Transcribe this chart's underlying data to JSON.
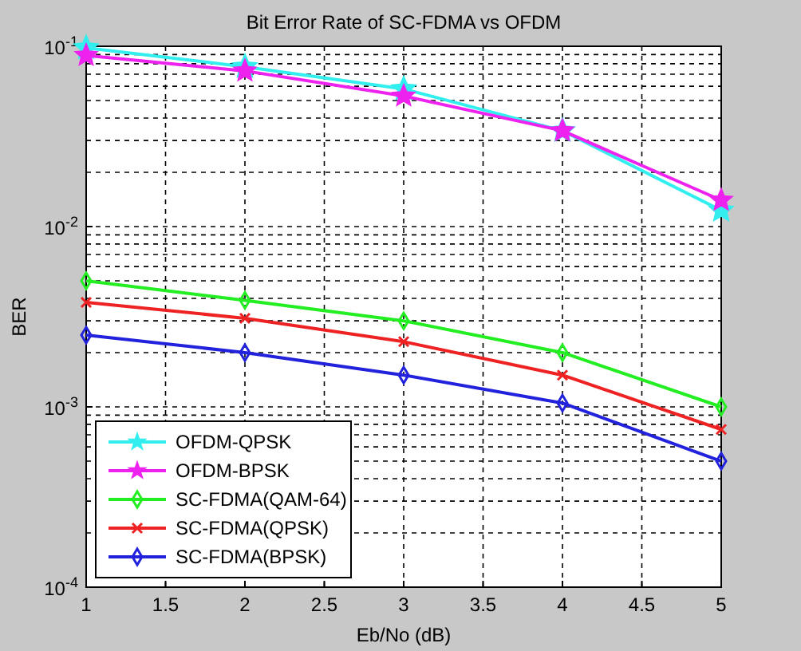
{
  "chart_data": {
    "type": "line",
    "title": "Bit Error Rate of SC-FDMA vs OFDM",
    "xlabel": "Eb/No (dB)",
    "ylabel": "BER",
    "x": [
      1,
      2,
      3,
      4,
      5
    ],
    "xlim": [
      1,
      5
    ],
    "xticks": [
      1,
      1.5,
      2,
      2.5,
      3,
      3.5,
      4,
      4.5,
      5
    ],
    "ylim": [
      0.0001,
      0.1
    ],
    "yticks": [
      {
        "value": 0.0001,
        "label": "10$^{-4}$"
      },
      {
        "value": 0.001,
        "label": "10$^{-3}$"
      },
      {
        "value": 0.01,
        "label": "10$^{-2}$"
      },
      {
        "value": 0.1,
        "label": "10$^{-1}$"
      }
    ],
    "log": "y",
    "grid": true,
    "legend": "bottom left",
    "line_style": "solid",
    "series": [
      {
        "name": "OFDM-QPSK",
        "color": "#33eeee",
        "marker": "star",
        "values": [
          0.098,
          0.077,
          0.058,
          0.034,
          0.0123
        ]
      },
      {
        "name": "OFDM-BPSK",
        "color": "#ee22ee",
        "marker": "star",
        "values": [
          0.089,
          0.073,
          0.053,
          0.034,
          0.014
        ]
      },
      {
        "name": "SC-FDMA(QAM-64)",
        "color": "#22ee22",
        "marker": "diamond",
        "values": [
          0.005,
          0.0039,
          0.003,
          0.002,
          0.001
        ]
      },
      {
        "name": "SC-FDMA(QPSK)",
        "color": "#ee2222",
        "marker": "cross",
        "values": [
          0.0038,
          0.0031,
          0.0023,
          0.0015,
          0.00075
        ]
      },
      {
        "name": "SC-FDMA(BPSK)",
        "color": "#2222dd",
        "marker": "diamond",
        "values": [
          0.0025,
          0.002,
          0.0015,
          0.00105,
          0.0005
        ]
      }
    ]
  }
}
